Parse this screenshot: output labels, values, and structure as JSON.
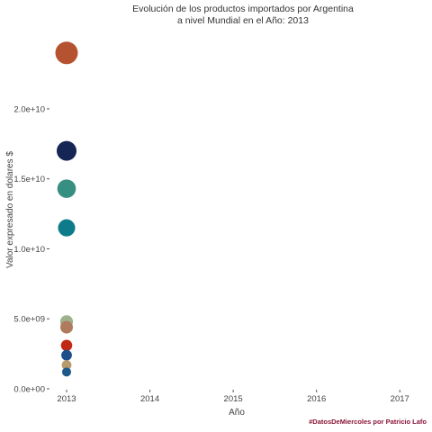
{
  "chart_data": {
    "type": "scatter",
    "title": [
      "Evolución de los productos importados por Argentina",
      "a nivel Mundial en el Año: 2013"
    ],
    "xlabel": "Año",
    "ylabel": "Valor expresado en dolares $",
    "caption": "#DatosDeMiercoles por Patricio Lafo",
    "x_ticks": [
      2013,
      2014,
      2015,
      2016,
      2017
    ],
    "x_tick_labels": [
      "2013",
      "2014",
      "2015",
      "2016",
      "2017"
    ],
    "y_ticks": [
      0,
      5000000000,
      10000000000,
      15000000000,
      20000000000
    ],
    "y_tick_labels": [
      "0.0e+00",
      "5.0e+09",
      "1.0e+10",
      "1.5e+10",
      "2.0e+10"
    ],
    "xlim": [
      2013,
      2017.3
    ],
    "ylim": [
      0,
      24500000000
    ],
    "grid": false,
    "legend": "none",
    "points": [
      {
        "x": 2013,
        "y": 24000000000,
        "size": 24000000000,
        "color": "#b5522f"
      },
      {
        "x": 2013,
        "y": 17000000000,
        "size": 17000000000,
        "color": "#152554"
      },
      {
        "x": 2013,
        "y": 14300000000,
        "size": 14300000000,
        "color": "#368f80"
      },
      {
        "x": 2013,
        "y": 11500000000,
        "size": 11500000000,
        "color": "#0e7b8a"
      },
      {
        "x": 2013,
        "y": 4800000000,
        "size": 4800000000,
        "color": "#9fb08c"
      },
      {
        "x": 2013,
        "y": 4400000000,
        "size": 4400000000,
        "color": "#b07a5e"
      },
      {
        "x": 2013,
        "y": 3100000000,
        "size": 3100000000,
        "color": "#c02a14"
      },
      {
        "x": 2013,
        "y": 2400000000,
        "size": 2400000000,
        "color": "#1d4f8a"
      },
      {
        "x": 2013,
        "y": 1700000000,
        "size": 1700000000,
        "color": "#b79a6a"
      },
      {
        "x": 2013,
        "y": 1200000000,
        "size": 1200000000,
        "color": "#1d5a8a"
      }
    ]
  }
}
